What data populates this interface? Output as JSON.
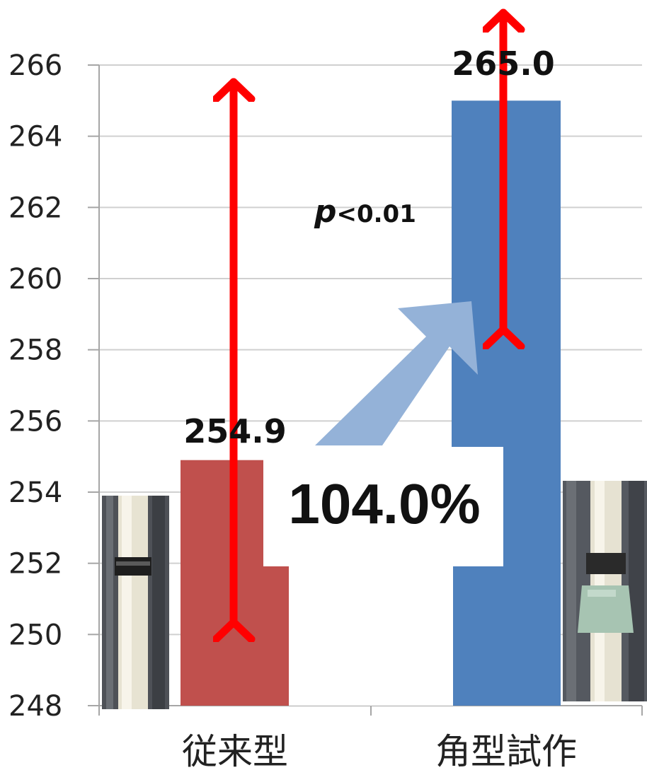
{
  "chart_data": {
    "type": "bar",
    "categories": [
      "従来型",
      "角型試作"
    ],
    "values": [
      254.9,
      265.0
    ],
    "value_labels": [
      "254.9",
      "265.0"
    ],
    "colors": [
      "#c0504d",
      "#4f81bd"
    ],
    "ylim": [
      248,
      266
    ],
    "yticks": [
      "248",
      "250",
      "252",
      "254",
      "256",
      "258",
      "260",
      "262",
      "264",
      "266"
    ],
    "grid": true,
    "legend": "none",
    "annotations": {
      "p_italic": "p",
      "p_rest": "<0.01",
      "ratio": "104.0%"
    }
  }
}
